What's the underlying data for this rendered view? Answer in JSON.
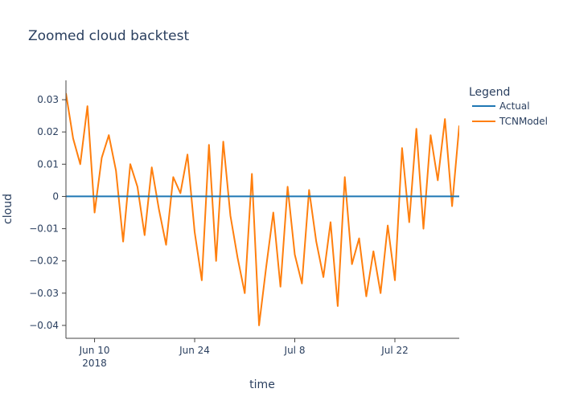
{
  "chart_data": {
    "type": "line",
    "title": "Zoomed cloud backtest",
    "xlabel": "time",
    "ylabel": "cloud",
    "x_ticks": [
      "Jun 10",
      "Jun 24",
      "Jul 8",
      "Jul 22"
    ],
    "x_tick_sublabel": "2018",
    "x_range": [
      "2018-06-06",
      "2018-07-31"
    ],
    "ylim": [
      -0.044,
      0.036
    ],
    "y_ticks": [
      0.03,
      0.02,
      0.01,
      0,
      -0.01,
      -0.02,
      -0.03,
      -0.04
    ],
    "y_tick_labels": [
      "0.03",
      "0.02",
      "0.01",
      "0",
      "−0.01",
      "−0.02",
      "−0.03",
      "−0.04"
    ],
    "grid": false,
    "legend": {
      "title": "Legend",
      "placement": "top-right"
    },
    "series": [
      {
        "name": "Actual",
        "color": "#1f77b4",
        "x": [
          "2018-06-06",
          "2018-07-31"
        ],
        "y": [
          0,
          0
        ]
      },
      {
        "name": "TCNModel",
        "color": "#ff7f0e",
        "x": [
          "2018-06-06",
          "2018-06-07",
          "2018-06-08",
          "2018-06-09",
          "2018-06-10",
          "2018-06-11",
          "2018-06-12",
          "2018-06-13",
          "2018-06-14",
          "2018-06-15",
          "2018-06-16",
          "2018-06-17",
          "2018-06-18",
          "2018-06-19",
          "2018-06-20",
          "2018-06-21",
          "2018-06-22",
          "2018-06-23",
          "2018-06-24",
          "2018-06-25",
          "2018-06-26",
          "2018-06-27",
          "2018-06-28",
          "2018-06-29",
          "2018-06-30",
          "2018-07-01",
          "2018-07-02",
          "2018-07-03",
          "2018-07-04",
          "2018-07-05",
          "2018-07-06",
          "2018-07-07",
          "2018-07-08",
          "2018-07-09",
          "2018-07-10",
          "2018-07-11",
          "2018-07-12",
          "2018-07-13",
          "2018-07-14",
          "2018-07-15",
          "2018-07-16",
          "2018-07-17",
          "2018-07-18",
          "2018-07-19",
          "2018-07-20",
          "2018-07-21",
          "2018-07-22",
          "2018-07-23",
          "2018-07-24",
          "2018-07-25",
          "2018-07-26",
          "2018-07-27",
          "2018-07-28",
          "2018-07-29",
          "2018-07-30",
          "2018-07-31"
        ],
        "y": [
          0.032,
          0.018,
          0.01,
          0.028,
          -0.005,
          0.012,
          0.019,
          0.008,
          -0.014,
          0.01,
          0.003,
          -0.012,
          0.009,
          -0.004,
          -0.015,
          0.006,
          0.001,
          0.013,
          -0.011,
          -0.026,
          0.016,
          -0.02,
          0.017,
          -0.006,
          -0.019,
          -0.03,
          0.007,
          -0.04,
          -0.022,
          -0.005,
          -0.028,
          0.003,
          -0.018,
          -0.027,
          0.002,
          -0.014,
          -0.025,
          -0.008,
          -0.034,
          0.006,
          -0.021,
          -0.013,
          -0.031,
          -0.017,
          -0.03,
          -0.009,
          -0.026,
          0.015,
          -0.008,
          0.021,
          -0.01,
          0.019,
          0.005,
          0.024,
          -0.003,
          0.022
        ]
      }
    ]
  }
}
